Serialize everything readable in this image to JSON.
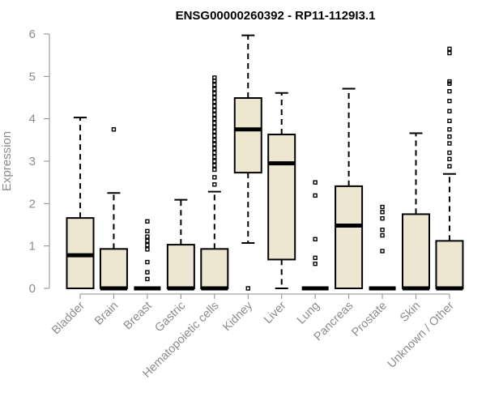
{
  "chart_data": {
    "type": "boxplot",
    "title": "ENSG00000260392 - RP11-1129I3.1",
    "ylabel": "Expression",
    "xlabel": "",
    "ylim": [
      0,
      6
    ],
    "yticks": [
      "0",
      "1",
      "2",
      "3",
      "4",
      "5",
      "6"
    ],
    "grid": false,
    "colors": {
      "box_fill": "#ede7d1",
      "box_stroke": "#000000",
      "axis": "#8c8c8c"
    },
    "categories": [
      "Bladder",
      "Brain",
      "Breast",
      "Gastric",
      "Hematopoietic cells",
      "Kidney",
      "Liver",
      "Lung",
      "Pancreas",
      "Prostate",
      "Skin",
      "Unknown / Other"
    ],
    "boxes": [
      {
        "category": "Bladder",
        "whisker_low": 0,
        "q1": 0,
        "median": 0.78,
        "q3": 1.66,
        "whisker_high": 4.03,
        "outliers": []
      },
      {
        "category": "Brain",
        "whisker_low": 0,
        "q1": 0,
        "median": 0,
        "q3": 0.93,
        "whisker_high": 2.25,
        "outliers": [
          3.75
        ]
      },
      {
        "category": "Breast",
        "whisker_low": 0,
        "q1": 0,
        "median": 0,
        "q3": 0,
        "whisker_high": 0,
        "outliers": [
          0.22,
          0.38,
          0.62,
          0.92,
          1.02,
          1.12,
          1.22,
          1.35,
          1.58
        ]
      },
      {
        "category": "Gastric",
        "whisker_low": 0,
        "q1": 0,
        "median": 0,
        "q3": 1.03,
        "whisker_high": 2.09,
        "outliers": []
      },
      {
        "category": "Hematopoietic cells",
        "whisker_low": 0,
        "q1": 0,
        "median": 0,
        "q3": 0.93,
        "whisker_high": 2.28,
        "outliers": [
          2.45,
          2.62,
          2.8,
          2.9,
          3.0,
          3.1,
          3.2,
          3.3,
          3.4,
          3.5,
          3.6,
          3.7,
          3.8,
          3.9,
          4.0,
          4.1,
          4.2,
          4.3,
          4.4,
          4.5,
          4.6,
          4.7,
          4.8,
          4.9,
          4.97
        ]
      },
      {
        "category": "Kidney",
        "whisker_low": 1.07,
        "q1": 2.73,
        "median": 3.75,
        "q3": 4.49,
        "whisker_high": 5.97,
        "outliers": [
          0
        ]
      },
      {
        "category": "Liver",
        "whisker_low": 0,
        "q1": 0.68,
        "median": 2.95,
        "q3": 3.63,
        "whisker_high": 4.61,
        "outliers": []
      },
      {
        "category": "Lung",
        "whisker_low": 0,
        "q1": 0,
        "median": 0,
        "q3": 0,
        "whisker_high": 0,
        "outliers": [
          0.58,
          0.72,
          1.16,
          2.19,
          2.5
        ]
      },
      {
        "category": "Pancreas",
        "whisker_low": 0,
        "q1": 0,
        "median": 1.48,
        "q3": 2.41,
        "whisker_high": 4.71,
        "outliers": []
      },
      {
        "category": "Prostate",
        "whisker_low": 0,
        "q1": 0,
        "median": 0,
        "q3": 0,
        "whisker_high": 0,
        "outliers": [
          0.88,
          1.25,
          1.38,
          1.65,
          1.8,
          1.92
        ]
      },
      {
        "category": "Skin",
        "whisker_low": 0,
        "q1": 0,
        "median": 0,
        "q3": 1.75,
        "whisker_high": 3.66,
        "outliers": []
      },
      {
        "category": "Unknown / Other",
        "whisker_low": 0,
        "q1": 0,
        "median": 0,
        "q3": 1.12,
        "whisker_high": 2.7,
        "outliers": [
          2.88,
          3.05,
          3.2,
          3.42,
          3.58,
          3.75,
          3.95,
          4.18,
          4.42,
          4.65,
          4.83,
          4.88,
          5.55,
          5.65
        ]
      }
    ]
  }
}
